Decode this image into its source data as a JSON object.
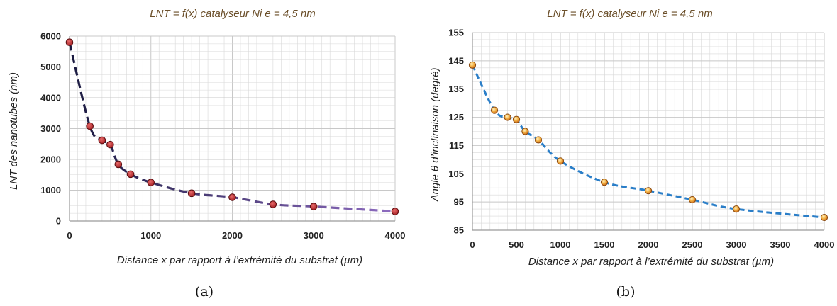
{
  "chart_data": [
    {
      "type": "line",
      "title": "LNT = f(x) catalyseur Ni e = 4,5 nm",
      "xlabel": "Distance x par rapport à l’extrémité du substrat (µm)",
      "ylabel": "LNT des nanotubes (nm)",
      "xlim": [
        0,
        4000
      ],
      "ylim": [
        0,
        6000
      ],
      "xticks": [
        "0",
        "1000",
        "2000",
        "3000",
        "4000"
      ],
      "yticks": [
        "0",
        "1000",
        "2000",
        "3000",
        "4000",
        "5000",
        "6000"
      ],
      "grid": "light minor grid",
      "series": [
        {
          "x": [
            0,
            250,
            400,
            500,
            600,
            750,
            1000,
            1500,
            2000,
            2500,
            3000,
            4000
          ],
          "y": [
            5800,
            3080,
            2620,
            2480,
            1840,
            1520,
            1250,
            900,
            770,
            540,
            470,
            310
          ],
          "marker_color": "#c0282d",
          "line_style": "dashed, gradient from #1a1a40 to #8e6cc0"
        }
      ],
      "panel_label": "(a)"
    },
    {
      "type": "line",
      "title": "LNT = f(x) catalyseur Ni e = 4,5 nm",
      "xlabel": "Distance x par rapport à l’extrémité du substrat (µm)",
      "ylabel": "Angle θ d’inclinaison (degré)",
      "xlim": [
        0,
        4000
      ],
      "ylim": [
        85,
        155
      ],
      "xticks": [
        "0",
        "500",
        "1000",
        "1500",
        "2000",
        "2500",
        "3000",
        "3500",
        "4000"
      ],
      "yticks": [
        "85",
        "95",
        "105",
        "115",
        "125",
        "135",
        "145",
        "155"
      ],
      "grid": "dense minor grid",
      "series": [
        {
          "x": [
            0,
            250,
            400,
            500,
            600,
            750,
            1000,
            1500,
            2000,
            2500,
            3000,
            4000
          ],
          "y": [
            143.5,
            127.5,
            125,
            124.2,
            120,
            117,
            109.5,
            102,
            99,
            95.8,
            92.5,
            89.5
          ],
          "marker_color": "#f0a030",
          "line_color": "#2a7ec8",
          "line_style": "dashed"
        }
      ],
      "panel_label": "(b)"
    }
  ]
}
